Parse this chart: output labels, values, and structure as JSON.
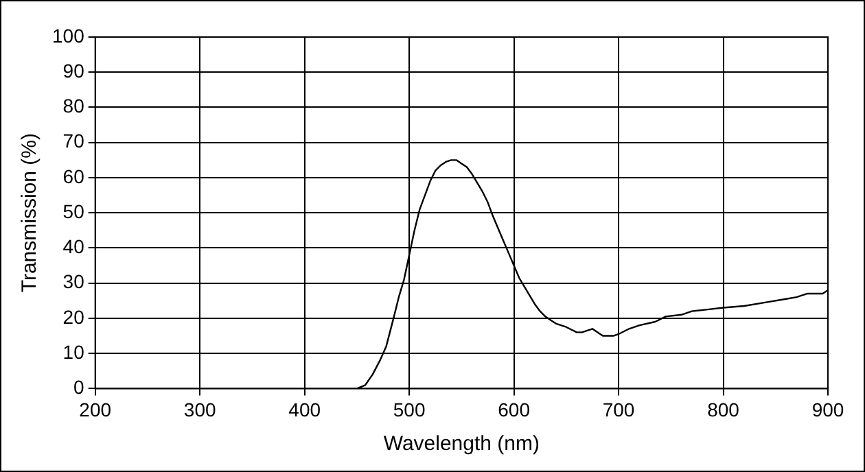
{
  "chart_data": {
    "type": "line",
    "xlabel": "Wavelength (nm)",
    "ylabel": "Transmission (%)",
    "x": [
      450,
      458,
      465,
      472,
      478,
      485,
      490,
      495,
      500,
      505,
      510,
      515,
      520,
      525,
      530,
      535,
      540,
      545,
      550,
      555,
      560,
      565,
      570,
      575,
      580,
      585,
      590,
      595,
      600,
      605,
      610,
      615,
      620,
      625,
      630,
      635,
      640,
      650,
      660,
      665,
      670,
      675,
      680,
      685,
      695,
      700,
      710,
      720,
      735,
      745,
      760,
      770,
      785,
      800,
      820,
      840,
      860,
      870,
      880,
      895,
      900
    ],
    "series": [
      {
        "color": "#000000",
        "values": [
          0,
          1,
          4,
          8,
          12,
          20,
          26,
          31,
          38,
          45,
          51,
          55,
          59,
          62,
          63.5,
          64.5,
          65,
          65,
          64,
          63,
          61,
          58.5,
          56,
          53,
          49,
          45.5,
          42,
          38.5,
          35,
          31.5,
          29,
          26.5,
          24,
          22,
          20.5,
          19.5,
          18.5,
          17.5,
          16,
          16,
          16.5,
          17,
          16,
          15,
          15,
          15.5,
          17,
          18,
          19,
          20.5,
          21,
          22,
          22.5,
          23,
          23.5,
          24.5,
          25.5,
          26,
          27,
          27,
          28
        ]
      }
    ],
    "xlim": [
      200,
      900
    ],
    "xticks": [
      200,
      300,
      400,
      500,
      600,
      700,
      800,
      900
    ],
    "ylim": [
      0,
      100
    ],
    "yticks": [
      0,
      10,
      20,
      30,
      40,
      50,
      60,
      70,
      80,
      90,
      100
    ],
    "grid": true,
    "legend": false,
    "marker": "none",
    "line_style": "solid"
  }
}
